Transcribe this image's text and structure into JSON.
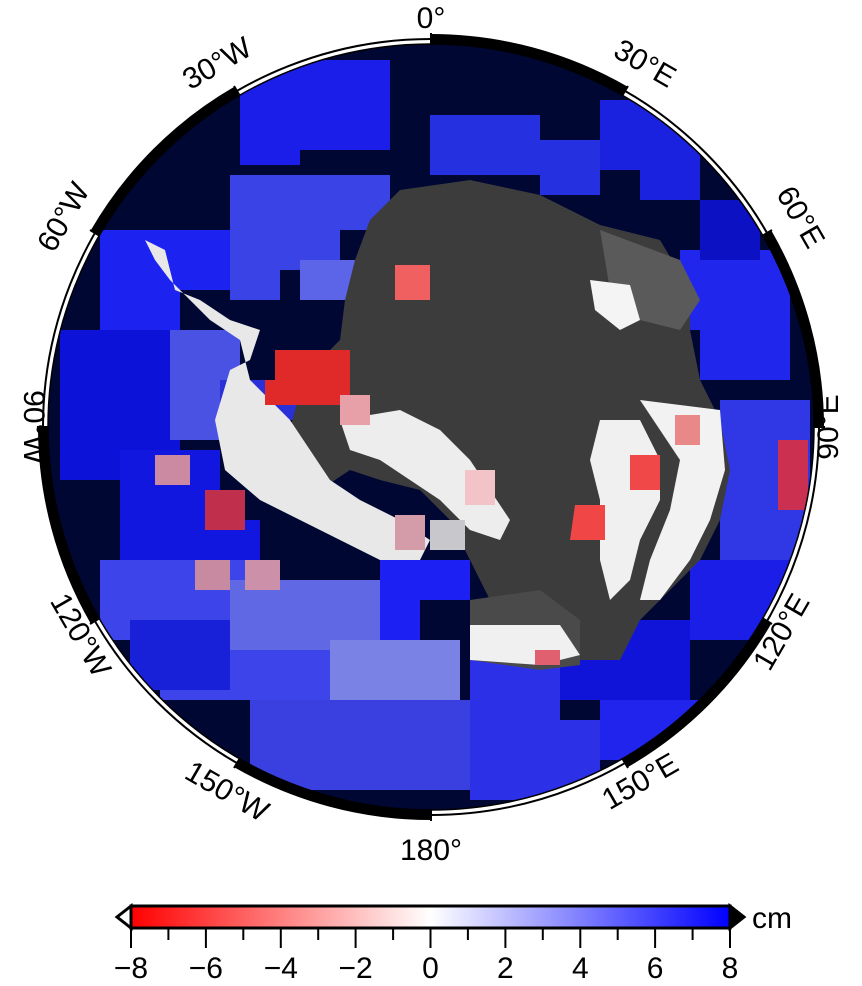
{
  "map": {
    "projection": "south-polar-stereographic",
    "longitude_labels": {
      "lon_0": "0°",
      "lon_30e": "30°E",
      "lon_60e": "60°E",
      "lon_90e": "90°E",
      "lon_120e": "120°E",
      "lon_150e": "150°E",
      "lon_180": "180°",
      "lon_150w": "150°W",
      "lon_120w": "120°W",
      "lon_90w": "90°W",
      "lon_60w": "60°W",
      "lon_30w": "30°W"
    },
    "colors": {
      "ocean_background": "#000733",
      "land_dark": "#3c3c3c",
      "ice_light": "#ebebeb",
      "frame": "#000000"
    }
  },
  "colorbar": {
    "unit": "cm",
    "min": -8,
    "max": 8,
    "tick_labels": [
      "−8",
      "−6",
      "−4",
      "−2",
      "0",
      "2",
      "4",
      "6",
      "8"
    ],
    "colormap": [
      "#ff0000",
      "#ffffff",
      "#0000ff"
    ]
  }
}
